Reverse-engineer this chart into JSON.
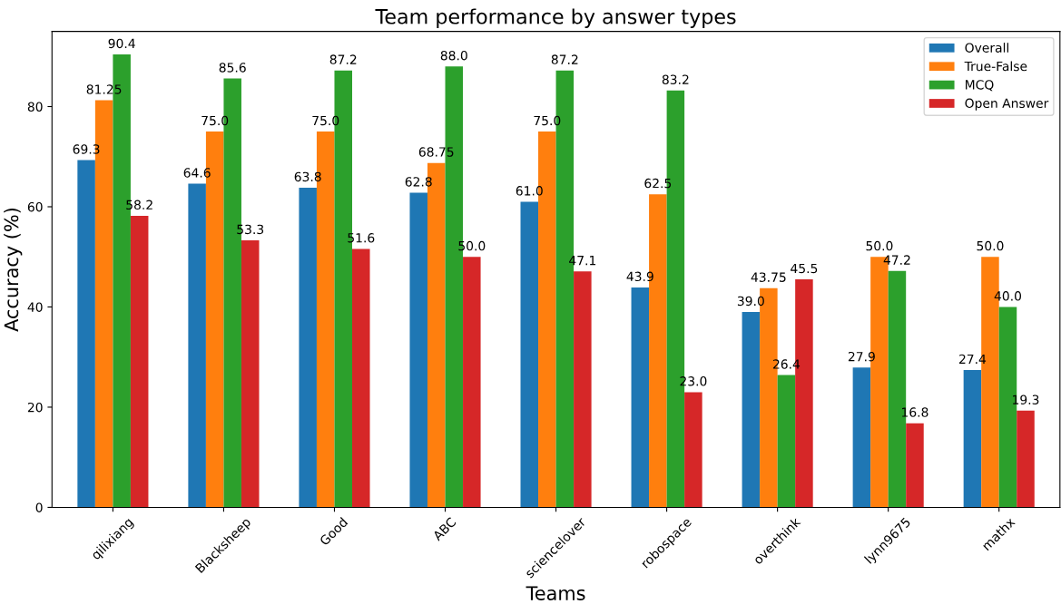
{
  "chart_data": {
    "type": "bar",
    "title": "Team performance by answer types",
    "xlabel": "Teams",
    "ylabel": "Accuracy (%)",
    "categories": [
      "qilixiang",
      "Blacksheep",
      "Good",
      "ABC",
      "sciencelover",
      "robospace",
      "overthink",
      "lynn9675",
      "mathx"
    ],
    "series": [
      {
        "name": "Overall",
        "color": "#1f77b4",
        "values": [
          69.3,
          64.6,
          63.8,
          62.8,
          61.0,
          43.9,
          39.0,
          27.9,
          27.4
        ],
        "value_labels": [
          "69.3",
          "64.6",
          "63.8",
          "62.8",
          "61.0",
          "43.9",
          "39.0",
          "27.9",
          "27.4"
        ]
      },
      {
        "name": "True-False",
        "color": "#ff7f0e",
        "values": [
          81.25,
          75.0,
          75.0,
          68.75,
          75.0,
          62.5,
          43.75,
          50.0,
          50.0
        ],
        "value_labels": [
          "81.25",
          "75.0",
          "75.0",
          "68.75",
          "75.0",
          "62.5",
          "43.75",
          "50.0",
          "50.0"
        ]
      },
      {
        "name": "MCQ",
        "color": "#2ca02c",
        "values": [
          90.4,
          85.6,
          87.2,
          88.0,
          87.2,
          83.2,
          26.4,
          47.2,
          40.0
        ],
        "value_labels": [
          "90.4",
          "85.6",
          "87.2",
          "88.0",
          "87.2",
          "83.2",
          "26.4",
          "47.2",
          "40.0"
        ]
      },
      {
        "name": "Open Answer",
        "color": "#d62728",
        "values": [
          58.2,
          53.3,
          51.6,
          50.0,
          47.1,
          23.0,
          45.5,
          16.8,
          19.3
        ],
        "value_labels": [
          "58.2",
          "53.3",
          "51.6",
          "50.0",
          "47.1",
          "23.0",
          "45.5",
          "16.8",
          "19.3"
        ]
      }
    ],
    "ylim": [
      0,
      95
    ],
    "yticks": [
      0,
      20,
      40,
      60,
      80
    ],
    "grid": false,
    "legend": "top right"
  }
}
